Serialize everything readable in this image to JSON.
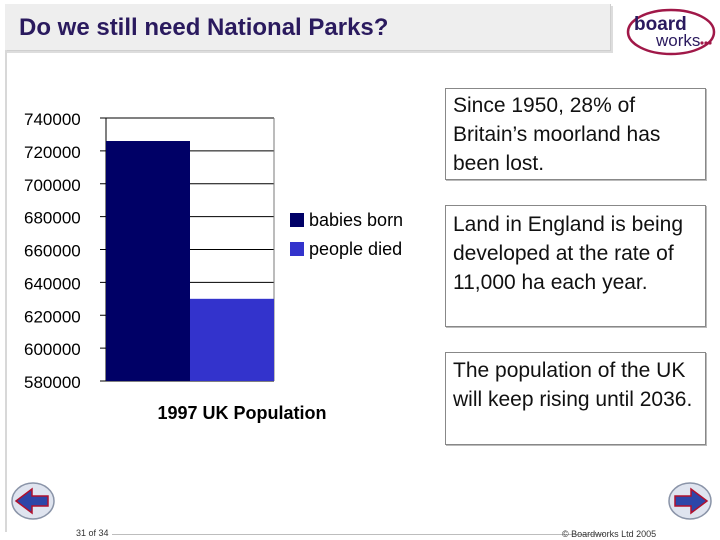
{
  "slide": {
    "title": "Do we still need National Parks?",
    "logo": {
      "line1": "board",
      "line2": "works"
    },
    "page_number": "31 of 34",
    "copyright": "© Boardworks Ltd 2005"
  },
  "info_boxes": [
    {
      "text": "Since 1950, 28% of Britain’s moorland has been lost."
    },
    {
      "text": "Land in England is being developed at the rate of 11,000 ha each year."
    },
    {
      "text": "The population of the UK will keep rising until 2036."
    }
  ],
  "nav": {
    "back_icon": "back-arrow-icon",
    "forward_icon": "forward-arrow-icon"
  },
  "colors": {
    "babies": "#000066",
    "deaths": "#3333cc",
    "title": "#2a1a5e"
  },
  "chart_data": {
    "type": "bar",
    "title": "",
    "xlabel": "1997 UK Population",
    "ylabel": "",
    "ylim": [
      580000,
      740000
    ],
    "yticks": [
      580000,
      600000,
      620000,
      640000,
      660000,
      680000,
      700000,
      720000,
      740000
    ],
    "grid": true,
    "legend": "right",
    "categories": [
      "1997 UK Population"
    ],
    "series": [
      {
        "name": "babies born",
        "values": [
          726000
        ]
      },
      {
        "name": "people died",
        "values": [
          630000
        ]
      }
    ]
  }
}
